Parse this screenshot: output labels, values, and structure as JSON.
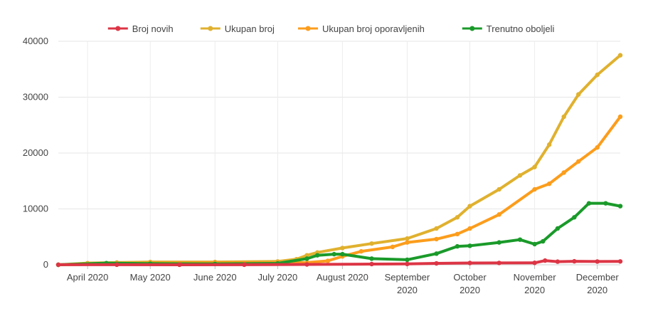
{
  "chart_data": {
    "type": "line",
    "title": "",
    "xlabel": "",
    "ylabel": "",
    "ylim": [
      0,
      40000
    ],
    "grid": true,
    "legend_position": "top-center",
    "y_ticks": [
      "0",
      "10000",
      "20000",
      "30000",
      "40000"
    ],
    "x_ticks": [
      {
        "date": "2020-04-01",
        "line1": "April 2020",
        "line2": ""
      },
      {
        "date": "2020-05-01",
        "line1": "May 2020",
        "line2": ""
      },
      {
        "date": "2020-06-01",
        "line1": "June 2020",
        "line2": ""
      },
      {
        "date": "2020-07-01",
        "line1": "July 2020",
        "line2": ""
      },
      {
        "date": "2020-08-01",
        "line1": "August 2020",
        "line2": ""
      },
      {
        "date": "2020-09-01",
        "line1": "September",
        "line2": "2020"
      },
      {
        "date": "2020-10-01",
        "line1": "October",
        "line2": "2020"
      },
      {
        "date": "2020-11-01",
        "line1": "November",
        "line2": "2020"
      },
      {
        "date": "2020-12-01",
        "line1": "December",
        "line2": "2020"
      }
    ],
    "x_range": [
      "2020-03-18",
      "2020-12-12"
    ],
    "series": [
      {
        "name": "Broj novih",
        "color": "#dc3545",
        "x": [
          "2020-03-18",
          "2020-04-15",
          "2020-05-15",
          "2020-06-15",
          "2020-07-15",
          "2020-08-15",
          "2020-09-01",
          "2020-09-15",
          "2020-10-01",
          "2020-10-15",
          "2020-11-01",
          "2020-11-06",
          "2020-11-12",
          "2020-11-20",
          "2020-12-01",
          "2020-12-12"
        ],
        "y": [
          10,
          15,
          5,
          15,
          60,
          130,
          150,
          250,
          320,
          330,
          350,
          750,
          560,
          620,
          580,
          600
        ]
      },
      {
        "name": "Ukupan broj",
        "color": "#e0b12f",
        "x": [
          "2020-03-18",
          "2020-04-01",
          "2020-04-15",
          "2020-05-01",
          "2020-06-01",
          "2020-07-01",
          "2020-07-10",
          "2020-07-15",
          "2020-07-20",
          "2020-08-01",
          "2020-08-15",
          "2020-09-01",
          "2020-09-15",
          "2020-09-25",
          "2020-10-01",
          "2020-10-15",
          "2020-10-25",
          "2020-11-01",
          "2020-11-08",
          "2020-11-15",
          "2020-11-22",
          "2020-12-01",
          "2020-12-12"
        ],
        "y": [
          0,
          300,
          400,
          500,
          500,
          600,
          1000,
          1700,
          2200,
          3000,
          3800,
          4700,
          6500,
          8500,
          10500,
          13500,
          16000,
          17500,
          21500,
          26500,
          30500,
          34000,
          37500
        ]
      },
      {
        "name": "Ukupan broj oporavljenih",
        "color": "#fc9d1c",
        "x": [
          "2020-03-18",
          "2020-04-15",
          "2020-05-01",
          "2020-06-01",
          "2020-07-01",
          "2020-07-15",
          "2020-07-25",
          "2020-08-01",
          "2020-08-10",
          "2020-08-25",
          "2020-09-01",
          "2020-09-15",
          "2020-09-25",
          "2020-10-01",
          "2020-10-15",
          "2020-11-01",
          "2020-11-08",
          "2020-11-15",
          "2020-11-22",
          "2020-12-01",
          "2020-12-12"
        ],
        "y": [
          0,
          150,
          300,
          350,
          350,
          400,
          700,
          1500,
          2400,
          3200,
          4000,
          4600,
          5500,
          6500,
          9000,
          13500,
          14500,
          16500,
          18500,
          21000,
          26500
        ]
      },
      {
        "name": "Trenutno oboljeli",
        "color": "#1a9a2a",
        "x": [
          "2020-03-18",
          "2020-04-10",
          "2020-05-01",
          "2020-06-01",
          "2020-07-01",
          "2020-07-15",
          "2020-07-20",
          "2020-07-28",
          "2020-08-01",
          "2020-08-15",
          "2020-09-01",
          "2020-09-15",
          "2020-09-25",
          "2020-10-01",
          "2020-10-15",
          "2020-10-25",
          "2020-11-01",
          "2020-11-05",
          "2020-11-12",
          "2020-11-20",
          "2020-11-27",
          "2020-12-05",
          "2020-12-12"
        ],
        "y": [
          0,
          300,
          200,
          150,
          250,
          1100,
          1700,
          1900,
          1900,
          1100,
          900,
          2000,
          3300,
          3400,
          4000,
          4500,
          3700,
          4200,
          6500,
          8500,
          11000,
          11000,
          10500
        ]
      }
    ]
  }
}
